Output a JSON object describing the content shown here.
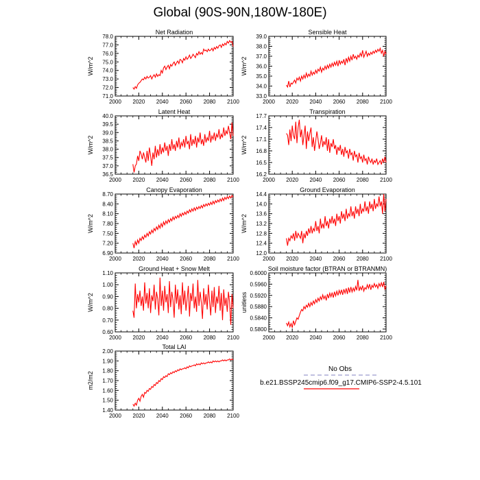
{
  "title": "Global (90S-90N,180W-180E)",
  "legend": {
    "obs_label": "No Obs",
    "obs_color": "#9a9acd",
    "case_label": "b.e21.BSSP245cmip6.f09_g17.CMIP6-SSP2-4.5.101",
    "case_color": "#ff0000"
  },
  "chart_data": [
    {
      "type": "line",
      "title": "Net Radiation",
      "ylabel": "W/m^2",
      "xlim": [
        2000,
        2100
      ],
      "ylim": [
        71.0,
        78.0
      ],
      "xticks": [
        "2000",
        "2020",
        "2040",
        "2060",
        "2080",
        "2100"
      ],
      "yticks": [
        "71.0",
        "72.0",
        "73.0",
        "74.0",
        "75.0",
        "76.0",
        "77.0",
        "78.0"
      ],
      "x_start": 2015,
      "values": [
        72.0,
        71.8,
        72.1,
        71.9,
        72.3,
        72.5,
        72.6,
        72.8,
        73.0,
        72.9,
        73.2,
        73.0,
        73.3,
        73.1,
        73.2,
        73.4,
        73.0,
        73.3,
        73.5,
        73.2,
        73.6,
        73.3,
        73.5,
        73.4,
        74.0,
        73.7,
        74.3,
        74.5,
        74.1,
        74.4,
        74.6,
        74.2,
        74.7,
        74.5,
        74.8,
        75.0,
        74.6,
        74.9,
        75.1,
        74.8,
        75.3,
        75.2,
        74.9,
        75.4,
        75.2,
        75.6,
        75.3,
        75.5,
        75.8,
        75.4,
        75.6,
        75.9,
        75.7,
        75.5,
        76.0,
        75.8,
        76.2,
        75.9,
        76.1,
        75.9,
        76.5,
        76.3,
        76.4,
        76.2,
        76.5,
        76.3,
        76.4,
        76.6,
        76.3,
        76.7,
        76.5,
        76.8,
        76.6,
        76.9,
        77.0,
        76.7,
        77.1,
        76.9,
        77.2,
        77.0,
        77.4,
        77.2,
        77.5,
        77.3,
        77.4,
        76.8
      ]
    },
    {
      "type": "line",
      "title": "Sensible Heat",
      "ylabel": "W/m^2",
      "xlim": [
        2000,
        2100
      ],
      "ylim": [
        33.0,
        39.0
      ],
      "xticks": [
        "2000",
        "2020",
        "2040",
        "2060",
        "2080",
        "2100"
      ],
      "yticks": [
        "33.0",
        "34.0",
        "35.0",
        "36.0",
        "37.0",
        "38.0",
        "39.0"
      ],
      "x_start": 2015,
      "values": [
        34.1,
        33.9,
        34.5,
        33.9,
        34.3,
        34.2,
        34.4,
        34.6,
        34.3,
        34.8,
        34.6,
        34.9,
        34.5,
        35.0,
        34.7,
        35.1,
        34.8,
        35.3,
        34.9,
        35.2,
        35.0,
        35.5,
        35.1,
        35.4,
        35.2,
        35.6,
        35.3,
        35.7,
        35.5,
        35.9,
        35.4,
        35.8,
        35.6,
        36.0,
        35.7,
        36.1,
        35.8,
        36.2,
        35.9,
        36.3,
        36.0,
        36.4,
        36.1,
        36.5,
        36.0,
        36.6,
        36.2,
        36.5,
        36.3,
        36.7,
        36.1,
        36.8,
        36.4,
        36.9,
        36.5,
        37.0,
        36.6,
        37.2,
        36.8,
        37.0,
        36.7,
        37.1,
        36.9,
        37.3,
        37.0,
        37.6,
        36.9,
        37.2,
        37.5,
        37.0,
        37.3,
        37.1,
        37.4,
        37.2,
        37.5,
        37.3,
        37.6,
        37.4,
        37.7,
        37.5,
        37.8,
        37.3,
        37.6,
        37.0,
        37.5,
        37.2
      ]
    },
    {
      "type": "line",
      "title": "Latent Heat",
      "ylabel": "W/m^2",
      "xlim": [
        2000,
        2100
      ],
      "ylim": [
        36.5,
        40.0
      ],
      "xticks": [
        "2000",
        "2020",
        "2040",
        "2060",
        "2080",
        "2100"
      ],
      "yticks": [
        "36.5",
        "37.0",
        "37.5",
        "38.0",
        "38.5",
        "39.0",
        "39.5",
        "40.0"
      ],
      "x_start": 2015,
      "values": [
        37.1,
        36.6,
        37.0,
        37.1,
        37.6,
        37.3,
        37.9,
        37.7,
        37.4,
        37.8,
        37.5,
        37.2,
        37.9,
        37.3,
        38.1,
        37.6,
        37.0,
        37.8,
        37.4,
        38.2,
        37.5,
        38.0,
        37.6,
        38.3,
        37.7,
        38.1,
        37.8,
        38.4,
        37.9,
        38.2,
        37.6,
        38.3,
        37.9,
        38.6,
        38.0,
        38.3,
        37.9,
        38.5,
        38.1,
        38.7,
        38.0,
        38.4,
        38.2,
        38.6,
        38.1,
        38.8,
        38.3,
        38.5,
        38.0,
        38.9,
        38.2,
        38.6,
        38.3,
        38.8,
        38.1,
        38.7,
        38.4,
        39.0,
        38.3,
        38.6,
        38.2,
        38.9,
        38.4,
        38.7,
        38.5,
        39.1,
        38.4,
        38.8,
        38.6,
        39.0,
        38.5,
        38.9,
        38.7,
        39.2,
        38.6,
        38.9,
        38.7,
        39.3,
        38.8,
        39.1,
        38.9,
        39.4,
        39.0,
        38.6,
        39.6,
        38.8
      ]
    },
    {
      "type": "line",
      "title": "Transpiration",
      "ylabel": "W/m^2",
      "xlim": [
        2000,
        2100
      ],
      "ylim": [
        16.2,
        17.7
      ],
      "xticks": [
        "2000",
        "2020",
        "2040",
        "2060",
        "2080",
        "2100"
      ],
      "yticks": [
        "16.2",
        "16.5",
        "16.8",
        "17.1",
        "17.4",
        "17.7"
      ],
      "x_start": 2015,
      "values": [
        17.25,
        17.2,
        16.95,
        17.35,
        17.05,
        17.45,
        17.2,
        17.1,
        17.55,
        17.0,
        17.4,
        17.6,
        17.15,
        17.35,
        16.95,
        17.2,
        17.45,
        16.85,
        17.3,
        17.05,
        17.25,
        17.4,
        16.9,
        17.15,
        16.8,
        17.05,
        17.3,
        17.1,
        16.85,
        17.0,
        17.2,
        16.9,
        17.05,
        16.95,
        17.15,
        16.8,
        17.1,
        16.75,
        17.0,
        16.9,
        17.1,
        16.85,
        16.95,
        16.7,
        16.9,
        16.8,
        16.95,
        16.7,
        16.85,
        16.65,
        16.9,
        16.75,
        16.8,
        16.6,
        16.85,
        16.7,
        16.75,
        16.55,
        16.8,
        16.65,
        16.7,
        16.5,
        16.75,
        16.6,
        16.65,
        16.5,
        16.7,
        16.55,
        16.6,
        16.45,
        16.65,
        16.55,
        16.5,
        16.6,
        16.45,
        16.55,
        16.5,
        16.6,
        16.45,
        16.5,
        16.55,
        16.45,
        16.6,
        16.5,
        16.65,
        16.5
      ]
    },
    {
      "type": "line",
      "title": "Canopy Evaporation",
      "ylabel": "W/m^2",
      "xlim": [
        2000,
        2100
      ],
      "ylim": [
        6.9,
        8.7
      ],
      "xticks": [
        "2000",
        "2020",
        "2040",
        "2060",
        "2080",
        "2100"
      ],
      "yticks": [
        "6.90",
        "7.20",
        "7.50",
        "7.80",
        "8.10",
        "8.40",
        "8.70"
      ],
      "x_start": 2015,
      "values": [
        7.2,
        7.05,
        7.25,
        7.15,
        7.3,
        7.2,
        7.35,
        7.28,
        7.4,
        7.32,
        7.45,
        7.38,
        7.5,
        7.42,
        7.55,
        7.48,
        7.6,
        7.52,
        7.65,
        7.58,
        7.7,
        7.62,
        7.75,
        7.66,
        7.8,
        7.7,
        7.85,
        7.76,
        7.88,
        7.8,
        7.92,
        7.84,
        7.95,
        7.88,
        8.0,
        7.92,
        8.02,
        7.96,
        8.05,
        7.98,
        8.1,
        8.02,
        8.12,
        8.06,
        8.15,
        8.08,
        8.18,
        8.12,
        8.22,
        8.15,
        8.25,
        8.18,
        8.28,
        8.2,
        8.3,
        8.24,
        8.32,
        8.26,
        8.35,
        8.28,
        8.38,
        8.32,
        8.4,
        8.34,
        8.42,
        8.36,
        8.45,
        8.38,
        8.48,
        8.4,
        8.5,
        8.44,
        8.52,
        8.46,
        8.55,
        8.48,
        8.58,
        8.5,
        8.6,
        8.54,
        8.62,
        8.56,
        8.64,
        8.58,
        8.66,
        8.6
      ]
    },
    {
      "type": "line",
      "title": "Ground Evaporation",
      "ylabel": "W/m^2",
      "xlim": [
        2000,
        2100
      ],
      "ylim": [
        12.0,
        14.4
      ],
      "xticks": [
        "2000",
        "2020",
        "2040",
        "2060",
        "2080",
        "2100"
      ],
      "yticks": [
        "12.0",
        "12.4",
        "12.8",
        "13.2",
        "13.6",
        "14.0",
        "14.4"
      ],
      "x_start": 2015,
      "values": [
        12.6,
        12.3,
        12.6,
        12.5,
        12.7,
        12.6,
        12.8,
        12.5,
        12.9,
        12.6,
        12.8,
        12.7,
        12.6,
        12.9,
        12.4,
        12.8,
        12.6,
        12.9,
        12.7,
        13.0,
        12.8,
        13.1,
        12.8,
        13.0,
        12.9,
        13.3,
        12.9,
        13.1,
        12.8,
        13.4,
        13.0,
        13.2,
        13.0,
        13.5,
        13.1,
        13.3,
        13.0,
        13.4,
        13.2,
        13.5,
        13.2,
        13.4,
        13.1,
        13.6,
        13.3,
        13.5,
        13.2,
        13.7,
        13.4,
        13.6,
        13.3,
        13.8,
        13.4,
        13.6,
        13.5,
        13.9,
        13.5,
        13.7,
        13.4,
        13.9,
        13.6,
        13.8,
        13.5,
        14.0,
        13.6,
        13.8,
        13.7,
        14.1,
        13.7,
        13.9,
        13.6,
        14.1,
        13.8,
        14.0,
        13.7,
        14.2,
        13.8,
        14.0,
        13.9,
        14.3,
        13.9,
        14.1,
        13.6,
        14.4,
        13.7,
        14.2
      ]
    },
    {
      "type": "line",
      "title": "Ground Heat + Snow Melt",
      "ylabel": "W/m^2",
      "xlim": [
        2000,
        2100
      ],
      "ylim": [
        0.6,
        1.1
      ],
      "xticks": [
        "2000",
        "2020",
        "2040",
        "2060",
        "2080",
        "2100"
      ],
      "yticks": [
        "0.60",
        "0.70",
        "0.80",
        "0.90",
        "1.00",
        "1.10"
      ],
      "x_start": 2015,
      "values": [
        0.78,
        0.72,
        1.01,
        0.8,
        0.92,
        0.85,
        0.95,
        0.82,
        0.9,
        0.78,
        1.02,
        0.84,
        0.93,
        0.8,
        0.97,
        0.76,
        0.91,
        0.86,
        1.0,
        0.79,
        0.94,
        0.88,
        0.74,
        1.06,
        0.82,
        0.95,
        0.78,
        0.99,
        0.85,
        0.92,
        0.76,
        1.03,
        0.81,
        0.94,
        0.87,
        0.72,
        1.0,
        0.84,
        0.96,
        0.79,
        0.91,
        0.75,
        1.02,
        0.83,
        0.95,
        0.78,
        0.88,
        0.99,
        0.73,
        0.93,
        0.86,
        1.01,
        0.8,
        0.9,
        0.77,
        1.04,
        0.82,
        0.94,
        0.85,
        0.71,
        0.97,
        0.83,
        0.92,
        0.79,
        1.0,
        0.86,
        0.74,
        0.95,
        0.81,
        0.98,
        0.76,
        0.9,
        0.84,
        0.99,
        0.78,
        0.93,
        0.7,
        0.96,
        0.82,
        0.89,
        0.77,
        0.94,
        0.85,
        0.66,
        0.92,
        0.8
      ]
    },
    {
      "type": "line",
      "title": "Soil moisture factor (BTRAN or BTRANMN)",
      "ylabel": "unitless",
      "xlim": [
        2000,
        2100
      ],
      "ylim": [
        0.579,
        0.6
      ],
      "xticks": [
        "2000",
        "2020",
        "2040",
        "2060",
        "2080",
        "2100"
      ],
      "yticks": [
        "0.5800",
        "0.5840",
        "0.5880",
        "0.5920",
        "0.5960",
        "0.6000"
      ],
      "x_start": 2015,
      "values": [
        0.5822,
        0.5812,
        0.5825,
        0.5808,
        0.582,
        0.5805,
        0.583,
        0.5815,
        0.5828,
        0.584,
        0.5835,
        0.5848,
        0.586,
        0.587,
        0.5865,
        0.588,
        0.5872,
        0.5885,
        0.5878,
        0.5892,
        0.588,
        0.5895,
        0.5885,
        0.59,
        0.589,
        0.5905,
        0.5895,
        0.591,
        0.59,
        0.5915,
        0.5905,
        0.5922,
        0.5908,
        0.5918,
        0.5902,
        0.5925,
        0.591,
        0.5928,
        0.5915,
        0.593,
        0.5912,
        0.5933,
        0.5918,
        0.5935,
        0.592,
        0.5938,
        0.5925,
        0.594,
        0.5922,
        0.5942,
        0.5928,
        0.5945,
        0.5925,
        0.5948,
        0.593,
        0.595,
        0.5932,
        0.5946,
        0.5935,
        0.5952,
        0.5938,
        0.5975,
        0.5936,
        0.595,
        0.594,
        0.5955,
        0.5935,
        0.5948,
        0.5942,
        0.5958,
        0.5945,
        0.596,
        0.594,
        0.5956,
        0.5948,
        0.5962,
        0.595,
        0.5958,
        0.5945,
        0.5962,
        0.5952,
        0.5965,
        0.595,
        0.5968,
        0.594,
        0.5955
      ]
    },
    {
      "type": "line",
      "title": "Total LAI",
      "ylabel": "m2/m2",
      "xlim": [
        2000,
        2100
      ],
      "ylim": [
        1.4,
        2.0
      ],
      "xticks": [
        "2000",
        "2020",
        "2040",
        "2060",
        "2080",
        "2100"
      ],
      "yticks": [
        "1.40",
        "1.50",
        "1.60",
        "1.70",
        "1.80",
        "1.90",
        "2.00"
      ],
      "x_start": 2015,
      "values": [
        1.46,
        1.44,
        1.47,
        1.45,
        1.5,
        1.52,
        1.49,
        1.54,
        1.56,
        1.53,
        1.58,
        1.57,
        1.6,
        1.59,
        1.62,
        1.61,
        1.64,
        1.63,
        1.66,
        1.65,
        1.68,
        1.67,
        1.7,
        1.69,
        1.72,
        1.71,
        1.74,
        1.73,
        1.75,
        1.74,
        1.77,
        1.76,
        1.78,
        1.77,
        1.79,
        1.78,
        1.8,
        1.79,
        1.81,
        1.8,
        1.82,
        1.81,
        1.82,
        1.82,
        1.83,
        1.82,
        1.84,
        1.83,
        1.85,
        1.84,
        1.85,
        1.85,
        1.86,
        1.85,
        1.87,
        1.86,
        1.87,
        1.86,
        1.88,
        1.87,
        1.88,
        1.87,
        1.88,
        1.88,
        1.89,
        1.88,
        1.89,
        1.88,
        1.9,
        1.89,
        1.9,
        1.89,
        1.9,
        1.89,
        1.9,
        1.9,
        1.91,
        1.9,
        1.91,
        1.9,
        1.91,
        1.91,
        1.92,
        1.91,
        1.92,
        1.91
      ]
    }
  ]
}
